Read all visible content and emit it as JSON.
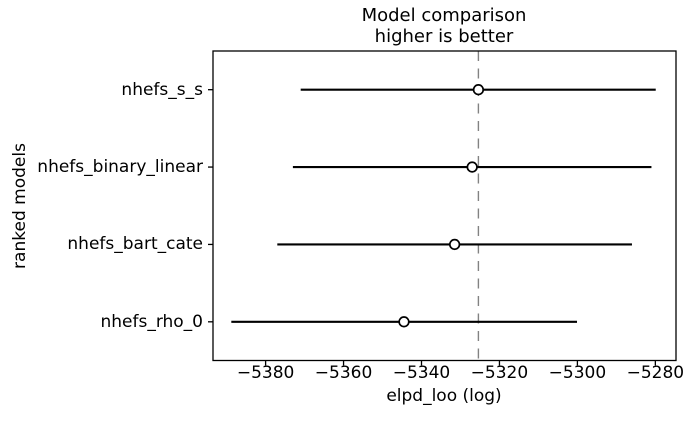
{
  "chart_data": {
    "type": "scatter",
    "style": "horizontal-errorbar-forest",
    "title": "Model comparison",
    "subtitle": "higher is better",
    "xlabel": "elpd_loo (log)",
    "ylabel": "ranked models",
    "categories": [
      "nhefs_s_s",
      "nhefs_binary_linear",
      "nhefs_bart_cate",
      "nhefs_rho_0"
    ],
    "series": [
      {
        "name": "nhefs_s_s",
        "elpd_loo": -5325.4,
        "se": 45.6,
        "interval": [
          -5371.0,
          -5279.9
        ]
      },
      {
        "name": "nhefs_binary_linear",
        "elpd_loo": -5327.0,
        "se": 46.0,
        "interval": [
          -5373.0,
          -5281.0
        ]
      },
      {
        "name": "nhefs_bart_cate",
        "elpd_loo": -5331.5,
        "se": 45.5,
        "interval": [
          -5377.0,
          -5286.0
        ]
      },
      {
        "name": "nhefs_rho_0",
        "elpd_loo": -5344.5,
        "se": 44.4,
        "interval": [
          -5388.8,
          -5300.1
        ]
      }
    ],
    "vline_x": -5325.4,
    "xlim": [
      -5393.5,
      -5274.7
    ],
    "xticks": [
      -5380,
      -5360,
      -5340,
      -5320,
      -5300,
      -5280
    ],
    "xtick_labels": [
      "−5380",
      "−5360",
      "−5340",
      "−5320",
      "−5300",
      "−5280"
    ],
    "grid": false,
    "legend": null,
    "marker": "open-circle",
    "colors": {
      "errorbar": "#000000",
      "marker_fill": "#ffffff",
      "marker_edge": "#000000",
      "vline": "#828282",
      "spine": "#000000",
      "text": "#000000",
      "background": "#ffffff"
    }
  }
}
